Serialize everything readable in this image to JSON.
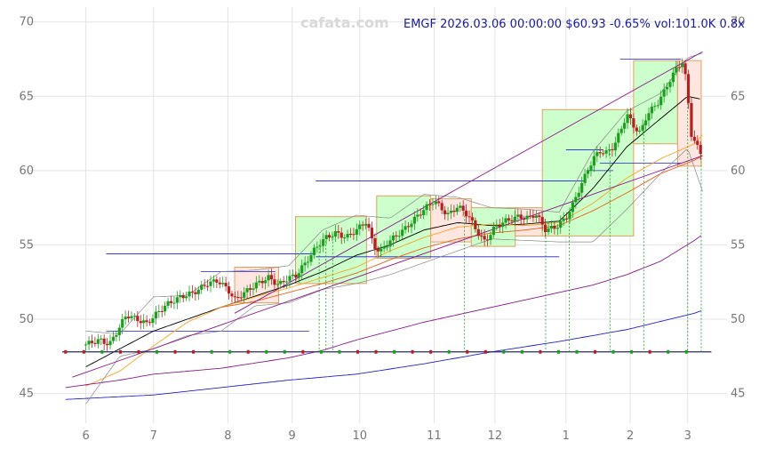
{
  "chart_data": {
    "type": "candlestick",
    "watermark": "cafata.com",
    "header": "EMGF 2026.03.06 00:00:00 $60.93 -0.65% vol:101.0K 0.8x",
    "y_ticks": [
      45,
      50,
      55,
      60,
      65,
      70
    ],
    "y_tick_labels": [
      "45",
      "50",
      "55",
      "60",
      "65",
      "70"
    ],
    "ylim": [
      43.0,
      71.0
    ],
    "x_ticks": [
      {
        "label": "6",
        "pos": 0.0
      },
      {
        "label": "7",
        "pos": 1.0
      },
      {
        "label": "8",
        "pos": 2.1
      },
      {
        "label": "9",
        "pos": 3.05
      },
      {
        "label": "10",
        "pos": 4.05
      },
      {
        "label": "11",
        "pos": 5.15
      },
      {
        "label": "12",
        "pos": 6.05
      },
      {
        "label": "1",
        "pos": 7.1
      },
      {
        "label": "2",
        "pos": 8.05
      },
      {
        "label": "3",
        "pos": 8.9
      }
    ],
    "xlim": [
      -0.35,
      9.35
    ],
    "colors": {
      "up": "#1e9e1e",
      "down": "#b22222",
      "ma_fast": "#000000",
      "ma_mid": "#f5a623",
      "ma_slow": "#e8601c",
      "ma_long": "#8b1a8b",
      "ma_longest": "#2020d0",
      "band": "#888888",
      "trend": "#8b1a8b",
      "box_up": "#ccffcc",
      "box_down": "#ffe6e0",
      "box_edge": "#e0a060",
      "hline": "#2020d0"
    },
    "price_anchors": [
      [
        0.0,
        48.3
      ],
      [
        0.2,
        48.6
      ],
      [
        0.35,
        48.3
      ],
      [
        0.5,
        49.5
      ],
      [
        0.6,
        50.3
      ],
      [
        0.75,
        50.0
      ],
      [
        0.9,
        49.7
      ],
      [
        1.05,
        50.4
      ],
      [
        1.2,
        51.0
      ],
      [
        1.4,
        51.5
      ],
      [
        1.6,
        51.8
      ],
      [
        1.8,
        52.4
      ],
      [
        1.95,
        52.6
      ],
      [
        2.1,
        52.0
      ],
      [
        2.2,
        51.3
      ],
      [
        2.35,
        51.8
      ],
      [
        2.5,
        52.3
      ],
      [
        2.7,
        52.8
      ],
      [
        2.85,
        52.3
      ],
      [
        3.0,
        52.8
      ],
      [
        3.1,
        52.9
      ],
      [
        3.25,
        53.8
      ],
      [
        3.4,
        54.8
      ],
      [
        3.55,
        55.5
      ],
      [
        3.7,
        55.8
      ],
      [
        3.85,
        55.5
      ],
      [
        4.0,
        56.0
      ],
      [
        4.15,
        56.6
      ],
      [
        4.25,
        55.0
      ],
      [
        4.35,
        54.5
      ],
      [
        4.5,
        55.3
      ],
      [
        4.7,
        56.0
      ],
      [
        4.85,
        56.7
      ],
      [
        5.0,
        57.4
      ],
      [
        5.15,
        58.0
      ],
      [
        5.25,
        57.5
      ],
      [
        5.35,
        57.0
      ],
      [
        5.5,
        57.6
      ],
      [
        5.65,
        57.0
      ],
      [
        5.8,
        55.8
      ],
      [
        5.9,
        55.2
      ],
      [
        6.05,
        56.2
      ],
      [
        6.2,
        56.6
      ],
      [
        6.4,
        56.9
      ],
      [
        6.55,
        56.8
      ],
      [
        6.65,
        57.1
      ],
      [
        6.8,
        56.0
      ],
      [
        6.95,
        56.2
      ],
      [
        7.1,
        56.8
      ],
      [
        7.2,
        57.7
      ],
      [
        7.3,
        58.8
      ],
      [
        7.4,
        59.8
      ],
      [
        7.5,
        60.8
      ],
      [
        7.6,
        61.3
      ],
      [
        7.7,
        61.2
      ],
      [
        7.8,
        61.6
      ],
      [
        7.9,
        62.6
      ],
      [
        8.0,
        63.8
      ],
      [
        8.1,
        63.0
      ],
      [
        8.2,
        62.5
      ],
      [
        8.3,
        63.8
      ],
      [
        8.45,
        64.5
      ],
      [
        8.55,
        65.3
      ],
      [
        8.65,
        66.2
      ],
      [
        8.75,
        67.0
      ],
      [
        8.82,
        67.3
      ],
      [
        8.88,
        66.0
      ],
      [
        8.95,
        62.5
      ],
      [
        9.05,
        61.5
      ],
      [
        9.12,
        60.93
      ]
    ],
    "series": [
      {
        "name": "ma_fast",
        "anchors": [
          [
            0.0,
            46.8
          ],
          [
            1.0,
            49.2
          ],
          [
            2.0,
            50.8
          ],
          [
            3.0,
            52.3
          ],
          [
            3.5,
            53.2
          ],
          [
            4.0,
            54.3
          ],
          [
            4.5,
            55.0
          ],
          [
            5.0,
            56.0
          ],
          [
            5.5,
            56.5
          ],
          [
            6.0,
            56.3
          ],
          [
            6.5,
            56.4
          ],
          [
            7.0,
            56.6
          ],
          [
            7.5,
            58.8
          ],
          [
            8.0,
            61.6
          ],
          [
            8.5,
            63.5
          ],
          [
            8.9,
            65.0
          ],
          [
            9.1,
            64.8
          ]
        ]
      },
      {
        "name": "ma_mid",
        "anchors": [
          [
            0.0,
            45.5
          ],
          [
            0.5,
            46.5
          ],
          [
            1.0,
            48.2
          ],
          [
            1.5,
            49.8
          ],
          [
            2.0,
            50.8
          ],
          [
            2.5,
            51.5
          ],
          [
            3.0,
            52.1
          ],
          [
            3.5,
            52.8
          ],
          [
            4.0,
            53.5
          ],
          [
            4.5,
            54.6
          ],
          [
            5.0,
            55.5
          ],
          [
            5.5,
            56.2
          ],
          [
            6.0,
            56.4
          ],
          [
            6.5,
            56.3
          ],
          [
            7.0,
            56.5
          ],
          [
            7.5,
            57.8
          ],
          [
            8.0,
            59.5
          ],
          [
            8.5,
            60.8
          ],
          [
            9.0,
            61.8
          ],
          [
            9.12,
            62.4
          ]
        ]
      },
      {
        "name": "ma_slow",
        "anchors": [
          [
            2.0,
            50.8
          ],
          [
            2.5,
            51.2
          ],
          [
            3.0,
            51.8
          ],
          [
            3.5,
            52.4
          ],
          [
            4.0,
            53.1
          ],
          [
            4.5,
            54.0
          ],
          [
            5.0,
            54.8
          ],
          [
            5.5,
            55.4
          ],
          [
            6.0,
            55.8
          ],
          [
            6.5,
            56.0
          ],
          [
            7.0,
            56.3
          ],
          [
            7.5,
            57.3
          ],
          [
            8.0,
            58.5
          ],
          [
            8.5,
            59.8
          ],
          [
            9.0,
            60.7
          ],
          [
            9.12,
            61.0
          ]
        ]
      },
      {
        "name": "ma_long",
        "anchors": [
          [
            -0.3,
            45.4
          ],
          [
            0.5,
            45.9
          ],
          [
            1.0,
            46.3
          ],
          [
            2.0,
            46.7
          ],
          [
            3.0,
            47.4
          ],
          [
            3.5,
            47.9
          ],
          [
            4.0,
            48.6
          ],
          [
            5.0,
            49.8
          ],
          [
            6.0,
            50.8
          ],
          [
            7.0,
            51.8
          ],
          [
            7.5,
            52.3
          ],
          [
            8.0,
            53.0
          ],
          [
            8.5,
            53.9
          ],
          [
            9.0,
            55.3
          ],
          [
            9.12,
            55.7
          ]
        ]
      },
      {
        "name": "ma_longest",
        "anchors": [
          [
            -0.3,
            44.6
          ],
          [
            1.0,
            44.9
          ],
          [
            2.0,
            45.4
          ],
          [
            3.0,
            45.9
          ],
          [
            4.0,
            46.3
          ],
          [
            5.0,
            47.0
          ],
          [
            6.0,
            47.8
          ],
          [
            7.0,
            48.5
          ],
          [
            8.0,
            49.3
          ],
          [
            9.0,
            50.4
          ],
          [
            9.12,
            50.6
          ]
        ]
      },
      {
        "name": "band_upper",
        "anchors": [
          [
            0.0,
            49.2
          ],
          [
            0.5,
            49.0
          ],
          [
            1.0,
            51.5
          ],
          [
            1.5,
            51.6
          ],
          [
            2.0,
            53.2
          ],
          [
            2.5,
            53.3
          ],
          [
            3.0,
            53.6
          ],
          [
            3.5,
            56.0
          ],
          [
            4.0,
            57.0
          ],
          [
            4.5,
            56.8
          ],
          [
            5.0,
            58.4
          ],
          [
            5.5,
            58.2
          ],
          [
            6.0,
            57.5
          ],
          [
            6.5,
            57.4
          ],
          [
            7.0,
            57.2
          ],
          [
            7.5,
            61.3
          ],
          [
            8.0,
            64.0
          ],
          [
            8.5,
            65.2
          ],
          [
            8.9,
            67.6
          ],
          [
            9.12,
            67.9
          ]
        ]
      },
      {
        "name": "band_lower",
        "anchors": [
          [
            0.0,
            44.3
          ],
          [
            0.5,
            47.5
          ],
          [
            1.0,
            48.0
          ],
          [
            1.5,
            48.9
          ],
          [
            2.0,
            49.2
          ],
          [
            2.5,
            50.9
          ],
          [
            3.0,
            51.1
          ],
          [
            3.5,
            52.0
          ],
          [
            4.0,
            52.4
          ],
          [
            4.5,
            53.0
          ],
          [
            5.0,
            53.8
          ],
          [
            5.5,
            54.6
          ],
          [
            6.0,
            55.4
          ],
          [
            6.5,
            55.3
          ],
          [
            7.0,
            55.2
          ],
          [
            7.5,
            55.2
          ],
          [
            8.0,
            57.4
          ],
          [
            8.5,
            59.8
          ],
          [
            8.9,
            61.5
          ],
          [
            9.12,
            58.6
          ]
        ]
      }
    ],
    "trend_lines": [
      {
        "from": [
          -0.2,
          46.1
        ],
        "to": [
          9.12,
          61.0
        ]
      },
      {
        "from": [
          2.2,
          50.4
        ],
        "to": [
          9.12,
          68.0
        ]
      }
    ],
    "boxes": [
      {
        "x0": 2.2,
        "x1": 2.85,
        "y0": 51.1,
        "y1": 53.5,
        "kind": "down"
      },
      {
        "x0": 3.1,
        "x1": 4.15,
        "y0": 52.4,
        "y1": 56.9,
        "kind": "up"
      },
      {
        "x0": 4.3,
        "x1": 5.1,
        "y0": 54.1,
        "y1": 58.3,
        "kind": "up"
      },
      {
        "x0": 5.1,
        "x1": 5.7,
        "y0": 55.2,
        "y1": 58.1,
        "kind": "down"
      },
      {
        "x0": 5.7,
        "x1": 6.35,
        "y0": 54.9,
        "y1": 57.5,
        "kind": "up"
      },
      {
        "x0": 6.35,
        "x1": 6.75,
        "y0": 55.6,
        "y1": 57.5,
        "kind": "down"
      },
      {
        "x0": 6.75,
        "x1": 8.1,
        "y0": 55.6,
        "y1": 64.1,
        "kind": "up"
      },
      {
        "x0": 8.1,
        "x1": 8.75,
        "y0": 61.8,
        "y1": 67.4,
        "kind": "up"
      },
      {
        "x0": 8.75,
        "x1": 9.1,
        "y0": 60.3,
        "y1": 67.4,
        "kind": "down"
      }
    ],
    "h_levels": [
      {
        "x0": 0.3,
        "x1": 3.4,
        "y": 54.4
      },
      {
        "x0": 0.3,
        "x1": 3.3,
        "y": 49.2
      },
      {
        "x0": 1.7,
        "x1": 2.8,
        "y": 53.2
      },
      {
        "x0": 3.4,
        "x1": 7.0,
        "y": 54.2
      },
      {
        "x0": 3.4,
        "x1": 7.4,
        "y": 59.3
      },
      {
        "x0": 7.4,
        "x1": 7.8,
        "y": 60.0
      },
      {
        "x0": 7.1,
        "x1": 7.65,
        "y": 61.4
      },
      {
        "x0": 7.6,
        "x1": 8.8,
        "y": 60.5
      },
      {
        "x0": 7.9,
        "x1": 8.8,
        "y": 67.5
      }
    ],
    "v_markers": [
      3.45,
      3.55,
      3.65,
      5.6,
      6.8,
      7.15,
      7.75,
      8.25,
      8.9,
      9.1
    ],
    "volume_line": 47.8,
    "grid": true
  }
}
